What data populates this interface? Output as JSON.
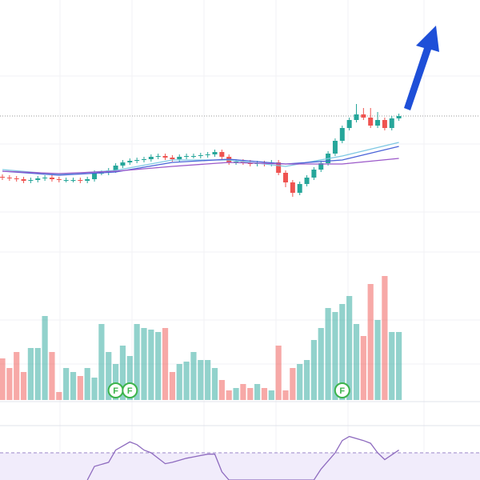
{
  "chart_data": {
    "type": "candlestick",
    "ylim": [
      0,
      330
    ],
    "open": [
      109,
      108,
      107,
      106,
      104,
      105,
      107,
      108,
      106,
      105,
      105,
      105,
      104,
      106,
      114,
      114,
      117,
      123,
      127,
      129,
      130,
      131,
      134,
      135,
      133,
      131,
      134,
      135,
      135,
      136,
      137,
      140,
      134,
      127,
      128,
      127,
      125,
      126,
      125,
      127,
      114,
      102,
      89,
      100,
      108,
      118,
      126,
      138,
      154,
      170,
      180,
      187,
      183,
      173,
      180,
      170,
      182
    ],
    "high": [
      112,
      111,
      110,
      109,
      108,
      110,
      111,
      111,
      109,
      108,
      108,
      108,
      109,
      117,
      117,
      120,
      126,
      130,
      132,
      133,
      134,
      137,
      138,
      138,
      136,
      137,
      138,
      138,
      139,
      140,
      143,
      143,
      137,
      131,
      131,
      130,
      129,
      129,
      130,
      130,
      117,
      105,
      103,
      111,
      121,
      129,
      141,
      157,
      173,
      183,
      200,
      195,
      195,
      190,
      183,
      185,
      188
    ],
    "low": [
      105,
      104,
      103,
      101,
      101,
      102,
      104,
      103,
      102,
      102,
      102,
      101,
      101,
      103,
      111,
      111,
      114,
      120,
      124,
      126,
      127,
      128,
      131,
      130,
      128,
      128,
      131,
      132,
      132,
      133,
      134,
      131,
      124,
      124,
      124,
      122,
      122,
      122,
      122,
      111,
      96,
      84,
      86,
      97,
      105,
      115,
      123,
      135,
      151,
      167,
      177,
      180,
      170,
      170,
      167,
      167,
      179
    ],
    "close": [
      108,
      107,
      106,
      104,
      105,
      107,
      108,
      106,
      105,
      105,
      105,
      104,
      106,
      114,
      114,
      117,
      123,
      127,
      129,
      130,
      131,
      134,
      135,
      133,
      131,
      134,
      135,
      135,
      136,
      137,
      140,
      134,
      127,
      128,
      127,
      125,
      126,
      125,
      127,
      114,
      102,
      89,
      100,
      108,
      118,
      126,
      138,
      154,
      170,
      180,
      187,
      183,
      173,
      180,
      170,
      182,
      185
    ],
    "up_color": "#26a69a",
    "down_color": "#ef5350",
    "last_price": 185,
    "moving_averages": [
      {
        "color": "#7ec8e3",
        "x": [
          0,
          8,
          16,
          24,
          32,
          40,
          48,
          56
        ],
        "values": [
          118,
          112,
          117,
          130,
          130,
          122,
          135,
          152
        ]
      },
      {
        "color": "#4a63d8",
        "x": [
          0,
          8,
          16,
          24,
          32,
          40,
          48,
          56
        ],
        "values": [
          116,
          111,
          115,
          127,
          131,
          125,
          130,
          147
        ]
      },
      {
        "color": "#9b59c9",
        "x": [
          0,
          8,
          16,
          24,
          32,
          40,
          48,
          56
        ],
        "values": [
          116,
          113,
          116,
          122,
          127,
          125,
          125,
          132
        ]
      }
    ],
    "volume": {
      "ylim": [
        0,
        160
      ],
      "values": [
        52,
        40,
        60,
        35,
        65,
        65,
        105,
        60,
        10,
        40,
        35,
        30,
        40,
        28,
        95,
        60,
        45,
        68,
        55,
        95,
        90,
        88,
        85,
        90,
        35,
        45,
        48,
        60,
        50,
        50,
        40,
        25,
        12,
        15,
        20,
        15,
        20,
        15,
        12,
        68,
        12,
        40,
        45,
        50,
        75,
        90,
        115,
        110,
        120,
        130,
        95,
        80,
        145,
        100,
        155,
        85,
        85
      ]
    },
    "markers": [
      {
        "index": 16,
        "label": "F"
      },
      {
        "index": 18,
        "label": "F"
      },
      {
        "index": 48,
        "label": "F"
      }
    ],
    "rsi": {
      "ylim": [
        50,
        85
      ],
      "level": 70,
      "color": "#8e6bbf",
      "x": [
        12,
        13,
        15,
        16,
        18,
        19,
        20,
        21,
        23,
        24,
        26,
        27,
        29,
        30,
        31,
        32,
        44,
        45,
        47,
        48,
        49,
        51,
        52,
        53,
        54,
        56
      ],
      "values": [
        50,
        60,
        63,
        72,
        78,
        76,
        72,
        70,
        62,
        63,
        66,
        67,
        69,
        69,
        56,
        50,
        50,
        58,
        70,
        79,
        82,
        79,
        77,
        70,
        65,
        72
      ]
    }
  }
}
